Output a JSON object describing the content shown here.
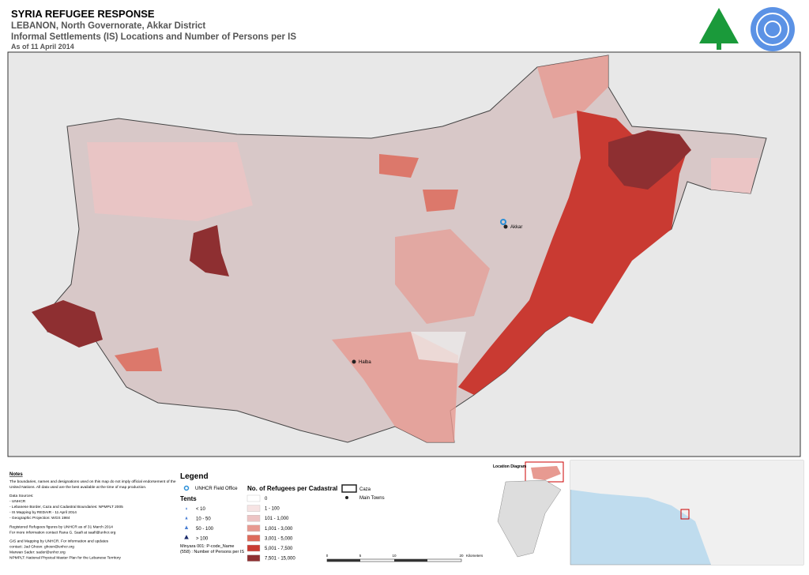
{
  "header": {
    "title": "SYRIA REFUGEE RESPONSE",
    "lines": [
      "LEBANON, North Governorate, Akkar District",
      "Informal Settlements (IS) Locations and Number of Persons per IS",
      "As of 11 April 2014"
    ]
  },
  "map": {
    "towns": [
      "Halba",
      "Akkar"
    ]
  },
  "notes": {
    "title": "Notes",
    "lines": [
      "The boundaries, names and designations used on this map do not imply official endorsement of the",
      "United Nations. All data used are the best available at the time of map production.",
      "Data Sources:",
      "- UNHCR",
      "- Lebanese Border, Caza and Cadastral Boundaries: NPMPLT 2005",
      "- IS Mapping by REDAIR - 11 April 2014",
      "- Geographic Projection: WGS 1984",
      "Registered Refugees figures by UNHCR as of 31 March 2014",
      "For more information contact Rana G. Saafi at saafi@unhcr.org",
      "GIS and Mapping by UNHCR. For information and updates",
      "contact: Jad Ghosn: ghosn@unhcr.org",
      "Marwan Sader: sader@unhcr.org",
      "NPMPLT: National Physical Master Plan for the Lebanese Territory"
    ]
  },
  "legend": {
    "title": "Legend",
    "field_office": "UNHCR Field Office",
    "tents_title": "Tents",
    "tents": [
      "< 10",
      "10 - 50",
      "50 - 100",
      "> 100"
    ],
    "refugees_title": "No. of Refugees per Cadastral",
    "classes": [
      "0",
      "1 - 100",
      "101 - 1,000",
      "1,001 - 3,000",
      "3,001 - 5,000",
      "5,001 - 7,500",
      "7,501 - 15,000"
    ],
    "class_colors": [
      "#ffffff",
      "#f6e3e3",
      "#edc4c4",
      "#e79a91",
      "#dd6a5b",
      "#c93a32",
      "#8e2f31"
    ],
    "caza": "Caza",
    "main_towns": "Main Towns",
    "example_name": "Minyara 001: P-code_Name",
    "example_count": "(558) : Number of Persons per IS"
  },
  "scale": {
    "labels": [
      "0",
      "5",
      "10",
      "20"
    ],
    "unit": "Kilometers"
  },
  "inset": {
    "title": "Location Diagram"
  }
}
